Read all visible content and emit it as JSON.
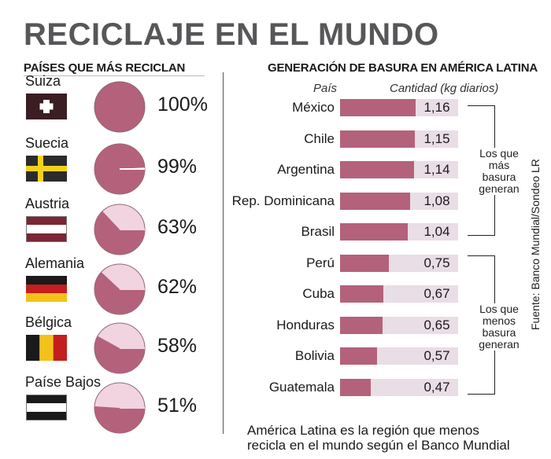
{
  "title": "RECICLAJE EN EL MUNDO",
  "left_section": {
    "title": "PAÍSES QUE MÁS RECICLAN",
    "countries": [
      {
        "name": "Suiza",
        "percent_label": "100%",
        "percent": 100,
        "flag": "switzerland-flag"
      },
      {
        "name": "Suecia",
        "percent_label": "99%",
        "percent": 99,
        "flag": "sweden-flag"
      },
      {
        "name": "Austria",
        "percent_label": "63%",
        "percent": 63,
        "flag": "austria-flag"
      },
      {
        "name": "Alemania",
        "percent_label": "62%",
        "percent": 62,
        "flag": "germany-flag"
      },
      {
        "name": "Bélgica",
        "percent_label": "58%",
        "percent": 58,
        "flag": "belgium-flag"
      },
      {
        "name": "Paíse Bajos",
        "percent_label": "51%",
        "percent": 51,
        "flag": "netherlands-flag"
      }
    ]
  },
  "right_section": {
    "title": "GENERACIÓN DE BASURA EN AMÉRICA LATINA",
    "col_country": "País",
    "col_amount": "Cantidad (kg diarios)",
    "bracket_top_note": "Los que\nmás\nbasura\ngeneran",
    "bracket_bottom_note": "Los que\nmenos\nbasura\ngeneran"
  },
  "footnote_lines": [
    "América Latina es la región que menos",
    "recicla en el mundo según el Banco Mundial"
  ],
  "source": "Fuente: Banco Mundial/Sondeo LR",
  "colors": {
    "pie_fill": "#b4617c",
    "pie_light": "#f2d3e0",
    "bar_fill": "#b4617c",
    "bar_bg": "#e9dde6",
    "title": "#57575a"
  },
  "chart_data": [
    {
      "type": "pie",
      "title": "PAÍSES QUE MÁS RECICLAN",
      "categories": [
        "Suiza",
        "Suecia",
        "Austria",
        "Alemania",
        "Bélgica",
        "Paíse Bajos"
      ],
      "values": [
        100,
        99,
        63,
        62,
        58,
        51
      ],
      "unit": "%"
    },
    {
      "type": "bar",
      "title": "GENERACIÓN DE BASURA EN AMÉRICA LATINA",
      "categories": [
        "México",
        "Chile",
        "Argentina",
        "Rep. Dominicana",
        "Brasil",
        "Perú",
        "Cuba",
        "Honduras",
        "Bolivia",
        "Guatemala"
      ],
      "values": [
        1.16,
        1.15,
        1.14,
        1.08,
        1.04,
        0.75,
        0.67,
        0.65,
        0.57,
        0.47
      ],
      "value_labels": [
        "1,16",
        "1,15",
        "1,14",
        "1,08",
        "1,04",
        "0,75",
        "0,67",
        "0,65",
        "0,57",
        "0,47"
      ],
      "xlabel": "Cantidad (kg diarios)",
      "ylabel": "País",
      "xlim": [
        0,
        1.16
      ]
    }
  ]
}
